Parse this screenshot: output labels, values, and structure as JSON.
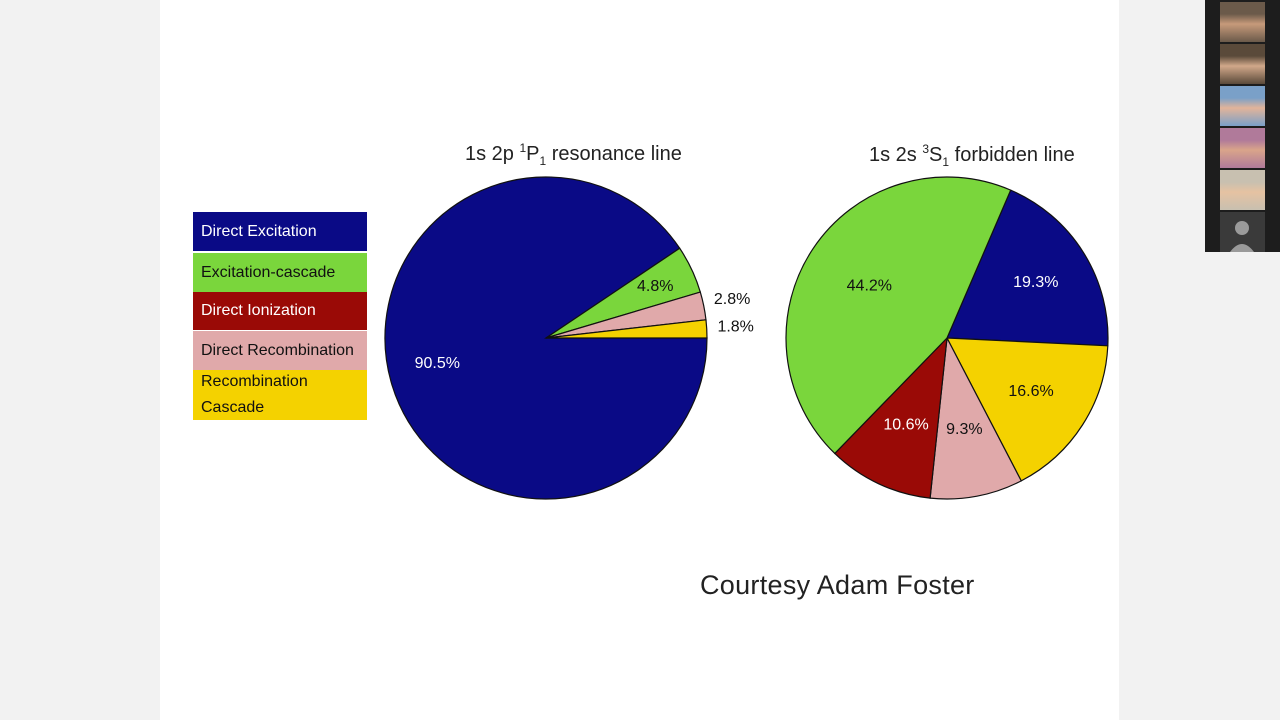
{
  "slide": {
    "credit": "Courtesy Adam Foster",
    "legend": [
      {
        "label": "Direct Excitation",
        "color": "#0a0a86",
        "text_color": "#ffffff"
      },
      {
        "label": "Excitation-cascade",
        "color": "#7ad63c",
        "text_color": "#111111"
      },
      {
        "label": "Direct Ionization",
        "color": "#9a0a06",
        "text_color": "#ffffff"
      },
      {
        "label": "Direct Recombination",
        "color": "#e0a9aa",
        "text_color": "#111111"
      },
      {
        "label": "Recombination Cascade",
        "color": "#f4d200",
        "text_color": "#111111"
      }
    ]
  },
  "chart_data": [
    {
      "type": "pie",
      "title_parts": {
        "prefix": "1s 2p ",
        "sup": "1",
        "letter": "P",
        "sub": "1",
        "suffix": "resonance line"
      },
      "slices": [
        {
          "label": "Direct Excitation",
          "value": 90.5,
          "display": "90.5%"
        },
        {
          "label": "Excitation-cascade",
          "value": 4.8,
          "display": "4.8%"
        },
        {
          "label": "Direct Recombination",
          "value": 2.8,
          "display": "2.8%"
        },
        {
          "label": "Recombination Cascade",
          "value": 1.8,
          "display": "1.8%"
        }
      ]
    },
    {
      "type": "pie",
      "title_parts": {
        "prefix": "1s 2s ",
        "sup": "3",
        "letter": "S",
        "sub": "1",
        "suffix": "forbidden line"
      },
      "slices": [
        {
          "label": "Direct Excitation",
          "value": 19.3,
          "display": "19.3%"
        },
        {
          "label": "Recombination Cascade",
          "value": 16.6,
          "display": "16.6%"
        },
        {
          "label": "Direct Recombination",
          "value": 9.3,
          "display": "9.3%"
        },
        {
          "label": "Direct Ionization",
          "value": 10.6,
          "display": "10.6%"
        },
        {
          "label": "Excitation-cascade",
          "value": 44.2,
          "display": "44.2%"
        }
      ]
    }
  ],
  "video_panel": {
    "participants": [
      {
        "kind": "video",
        "colors": [
          "#6b5a4a",
          "#c79a7a"
        ]
      },
      {
        "kind": "video",
        "colors": [
          "#5a4a3a",
          "#d1a88a"
        ]
      },
      {
        "kind": "video",
        "colors": [
          "#7aa0c8",
          "#e2b49a"
        ]
      },
      {
        "kind": "video",
        "colors": [
          "#b07a9a",
          "#d9a48a"
        ]
      },
      {
        "kind": "video",
        "colors": [
          "#c8c0b0",
          "#e6c2a2"
        ]
      },
      {
        "kind": "placeholder",
        "icon": "person-silhouette-icon"
      }
    ]
  }
}
